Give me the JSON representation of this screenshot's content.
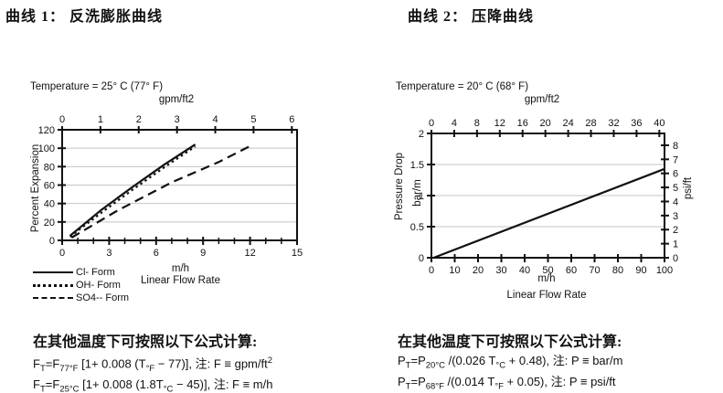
{
  "colors": {
    "ink": "#111111",
    "grid": "#c4c4c4",
    "background": "#ffffff"
  },
  "titles": {
    "left": "曲线 1：  反洗膨胀曲线",
    "right": "曲线 2：  压降曲线"
  },
  "chart_data": [
    {
      "type": "line",
      "temperature_note": "Temperature = 25° C (77° F)",
      "top_axis": {
        "label": "gpm/ft2",
        "ticks": [
          0,
          1,
          2,
          3,
          4,
          5,
          6
        ],
        "to_x_factor": 2.4446
      },
      "x_axis": {
        "unit": "m/h",
        "label": "Linear Flow Rate",
        "min": 0,
        "max": 15,
        "major_ticks": [
          0,
          3,
          6,
          9,
          12,
          15
        ],
        "minor_step": 1
      },
      "y_axis": {
        "label": "Percent Expansion",
        "min": 0,
        "max": 120,
        "ticks": [
          0,
          20,
          40,
          60,
          80,
          100,
          120
        ]
      },
      "gridlines_y": [
        20,
        40,
        60,
        80,
        100
      ],
      "series": [
        {
          "name": "Cl- Form",
          "style": "solid",
          "points": [
            [
              0.5,
              5
            ],
            [
              2.5,
              33
            ],
            [
              4.5,
              58
            ],
            [
              6.5,
              82
            ],
            [
              8.5,
              104
            ]
          ]
        },
        {
          "name": "OH- Form",
          "style": "dotted",
          "points": [
            [
              0.5,
              4
            ],
            [
              2.5,
              30
            ],
            [
              4.5,
              55
            ],
            [
              6.5,
              79
            ],
            [
              8.5,
              102
            ]
          ]
        },
        {
          "name": "SO4-- Form",
          "style": "dashed",
          "points": [
            [
              0.6,
              3
            ],
            [
              3.5,
              32
            ],
            [
              7,
              63
            ],
            [
              10,
              85
            ],
            [
              12.2,
              104
            ]
          ]
        }
      ]
    },
    {
      "type": "line",
      "temperature_note": "Temperature = 20° C (68° F)",
      "top_axis": {
        "label": "gpm/ft2",
        "ticks": [
          0,
          4,
          8,
          12,
          16,
          20,
          24,
          28,
          32,
          36,
          40
        ],
        "to_x_factor": 2.4446
      },
      "x_axis": {
        "unit": "m/h",
        "label": "Linear Flow Rate",
        "min": 0,
        "max": 100,
        "major_ticks": [
          0,
          10,
          20,
          30,
          40,
          50,
          60,
          70,
          80,
          90,
          100
        ]
      },
      "y_axis": {
        "label": "Pressure Drop",
        "unit": "bar/m",
        "min": 0,
        "max": 2,
        "ticks": [
          0,
          0.5,
          1,
          1.5,
          2
        ]
      },
      "y2_axis": {
        "label": "psi/ft",
        "ticks": [
          0,
          1,
          2,
          3,
          4,
          5,
          6,
          7,
          8
        ],
        "bar_per_unit": 0.2262
      },
      "gridlines_y": [
        0.5,
        1,
        1.5
      ],
      "series": [
        {
          "name": "Pressure Drop",
          "style": "solid",
          "points": [
            [
              1,
              0
            ],
            [
              100,
              1.43
            ]
          ]
        }
      ]
    }
  ],
  "formulas": {
    "left": {
      "heading": "在其他温度下可按照以下公式计算:",
      "line1": "F<sub>T</sub>=F<sub>77°F</sub> [1+ 0.008 (T<sub>°F</sub> − 77)], 注: F ≡ gpm/ft<sup>2</sup>",
      "line2": "F<sub>T</sub>=F<sub>25°C</sub> [1+ 0.008 (1.8T<sub>°C</sub> − 45)], 注: F ≡ m/h"
    },
    "right": {
      "heading": "在其他温度下可按照以下公式计算:",
      "line1": "P<sub>T</sub>=P<sub>20°C</sub> /(0.026 T<sub>°C</sub> + 0.48), 注: P ≡ bar/m",
      "line2": "P<sub>T</sub>=P<sub>68°F</sub> /(0.014 T<sub>°F</sub> + 0.05), 注: P ≡ psi/ft"
    }
  }
}
